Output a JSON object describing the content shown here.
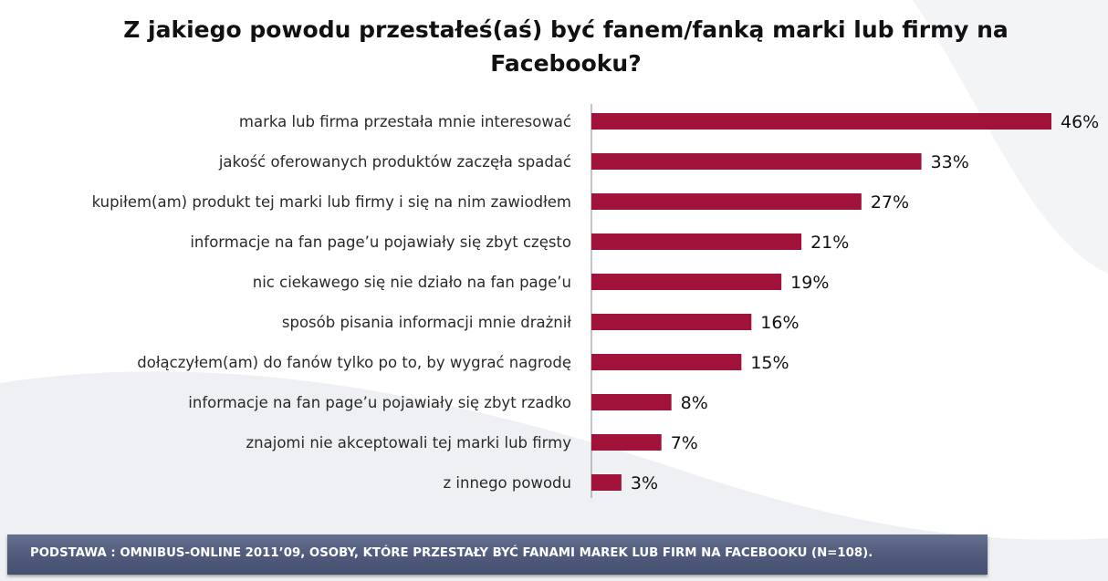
{
  "chart_data": {
    "type": "bar",
    "orientation": "horizontal",
    "title": "Z jakiego powodu przestałeś(aś) być fanem/fanką marki lub firmy na Facebooku?",
    "categories": [
      "marka lub firma przestała mnie interesować",
      "jakość oferowanych produktów zaczęła spadać",
      "kupiłem(am) produkt tej marki lub firmy i się na nim zawiodłem",
      "informacje na fan page’u pojawiały się zbyt często",
      "nic ciekawego się nie działo na fan page’u",
      "sposób pisania informacji mnie drażnił",
      "dołączyłem(am) do fanów tylko po to, by wygrać nagrodę",
      "informacje na fan page’u pojawiały się zbyt rzadko",
      "znajomi nie akceptowali tej marki lub firmy",
      "z innego powodu"
    ],
    "values": [
      46,
      33,
      27,
      21,
      19,
      16,
      15,
      8,
      7,
      3
    ],
    "value_labels": [
      "46%",
      "33%",
      "27%",
      "21%",
      "19%",
      "16%",
      "15%",
      "8%",
      "7%",
      "3%"
    ],
    "unit": "%",
    "xlim": [
      0,
      46
    ],
    "grid": false,
    "legend": "none",
    "bar_color": "#a0123a"
  },
  "footer": {
    "text": "PODSTAWA : OMNIBUS-ONLINE 2011’09, OSOBY, KTÓRE PRZESTAŁY BYĆ FANAMI MAREK LUB FIRM NA FACEBOOKU (N=108)."
  }
}
